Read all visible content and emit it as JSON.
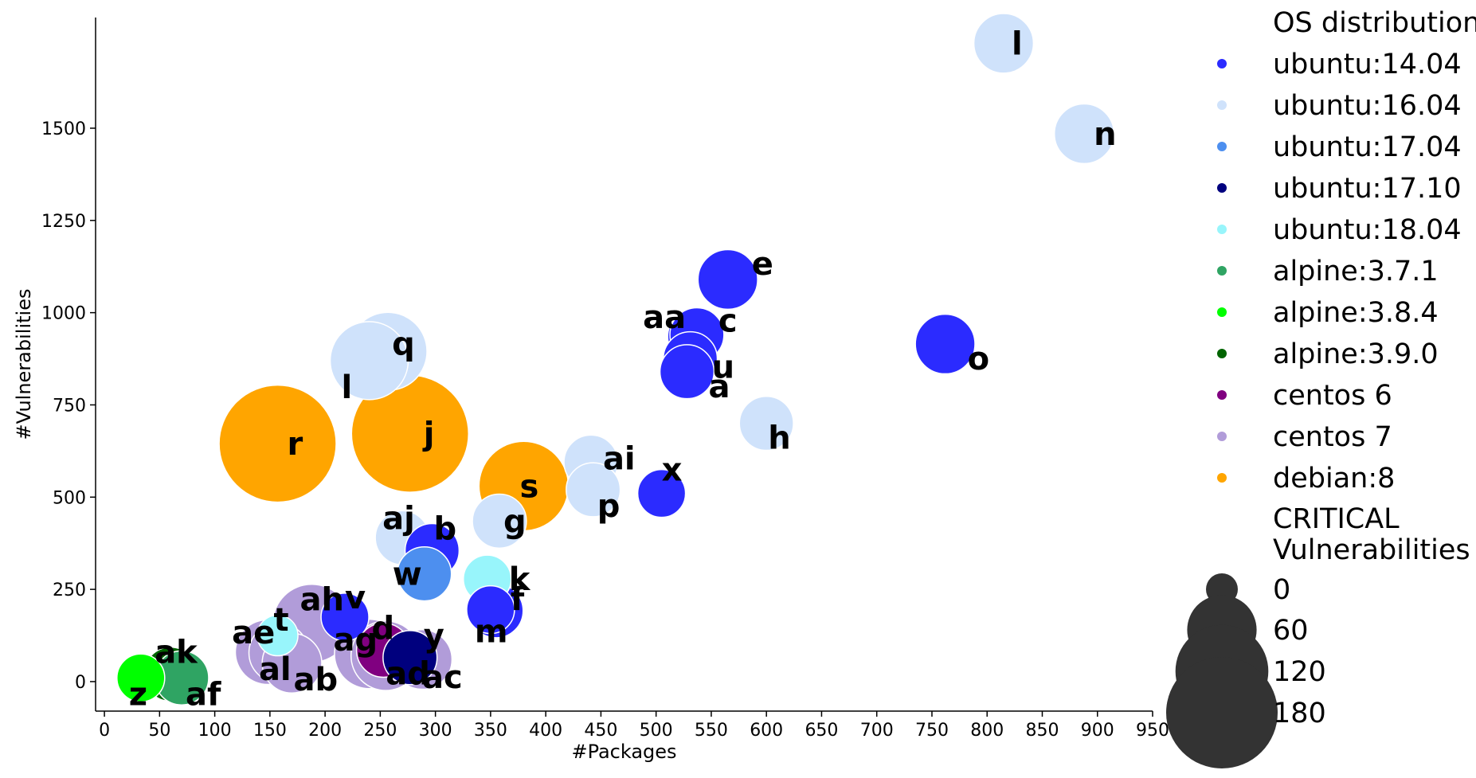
{
  "chart_data": {
    "type": "scatter",
    "xlabel": "#Packages",
    "ylabel": "#Vulnerabilities",
    "xlim": [
      -8,
      950
    ],
    "ylim": [
      -80,
      1800
    ],
    "x_ticks": [
      0,
      50,
      100,
      150,
      200,
      250,
      300,
      350,
      400,
      450,
      500,
      550,
      600,
      650,
      700,
      750,
      800,
      850,
      900,
      950
    ],
    "y_ticks": [
      0,
      250,
      500,
      750,
      1000,
      1250,
      1500
    ],
    "grid": false,
    "legend_position": "right",
    "color_legend_title": "OS distribution",
    "size_legend_title": [
      "CRITICAL",
      "Vulnerabilities"
    ],
    "size_legend_values": [
      0,
      60,
      120,
      180
    ],
    "categories": [
      {
        "name": "ubuntu:14.04",
        "color": "#2b2bff"
      },
      {
        "name": "ubuntu:16.04",
        "color": "#cfe2fb"
      },
      {
        "name": "ubuntu:17.04",
        "color": "#4d8fef"
      },
      {
        "name": "ubuntu:17.10",
        "color": "#00007e"
      },
      {
        "name": "ubuntu:18.04",
        "color": "#98f5fb"
      },
      {
        "name": "alpine:3.7.1",
        "color": "#2fa463"
      },
      {
        "name": "alpine:3.8.4",
        "color": "#00ff00"
      },
      {
        "name": "alpine:3.9.0",
        "color": "#006400"
      },
      {
        "name": "centos 6",
        "color": "#800080"
      },
      {
        "name": "centos 7",
        "color": "#b19cd9"
      },
      {
        "name": "debian:8",
        "color": "#ffa500"
      }
    ],
    "points": [
      {
        "label": "l",
        "os": "ubuntu:16.04",
        "x": 815,
        "y": 1730,
        "critical": 40,
        "lx": 10,
        "ly": 0
      },
      {
        "label": "n",
        "os": "ubuntu:16.04",
        "x": 888,
        "y": 1485,
        "critical": 40,
        "lx": 12,
        "ly": 0
      },
      {
        "label": "e",
        "os": "ubuntu:14.04",
        "x": 565,
        "y": 1090,
        "critical": 40,
        "lx": 30,
        "ly": -20
      },
      {
        "label": "o",
        "os": "ubuntu:14.04",
        "x": 762,
        "y": 915,
        "critical": 40,
        "lx": 28,
        "ly": 18
      },
      {
        "label": "aa",
        "os": "ubuntu:14.04",
        "x": 535,
        "y": 935,
        "critical": 30,
        "lx": -65,
        "ly": -25
      },
      {
        "label": "c",
        "os": "ubuntu:14.04",
        "x": 537,
        "y": 940,
        "critical": 30,
        "lx": 27,
        "ly": -18
      },
      {
        "label": "u",
        "os": "ubuntu:14.04",
        "x": 531,
        "y": 875,
        "critical": 30,
        "lx": 27,
        "ly": 10
      },
      {
        "label": "a",
        "os": "ubuntu:14.04",
        "x": 528,
        "y": 840,
        "critical": 30,
        "lx": 27,
        "ly": 18
      },
      {
        "label": "q",
        "os": "ubuntu:16.04",
        "x": 257,
        "y": 895,
        "critical": 80,
        "lx": 5,
        "ly": -10
      },
      {
        "label": "l",
        "os": "ubuntu:16.04",
        "x": 240,
        "y": 870,
        "critical": 80,
        "lx": -35,
        "ly": 33
      },
      {
        "label": "h",
        "os": "ubuntu:16.04",
        "x": 600,
        "y": 700,
        "critical": 30,
        "lx": 2,
        "ly": 18
      },
      {
        "label": "r",
        "os": "debian:8",
        "x": 157,
        "y": 645,
        "critical": 200,
        "lx": 12,
        "ly": 0
      },
      {
        "label": "j",
        "os": "debian:8",
        "x": 277,
        "y": 672,
        "critical": 200,
        "lx": 17,
        "ly": 0
      },
      {
        "label": "s",
        "os": "debian:8",
        "x": 380,
        "y": 530,
        "critical": 110,
        "lx": -5,
        "ly": 0
      },
      {
        "label": "ai",
        "os": "ubuntu:16.04",
        "x": 441,
        "y": 595,
        "critical": 30,
        "lx": 15,
        "ly": -5
      },
      {
        "label": "p",
        "os": "ubuntu:16.04",
        "x": 443,
        "y": 520,
        "critical": 30,
        "lx": 5,
        "ly": 20
      },
      {
        "label": "x",
        "os": "ubuntu:14.04",
        "x": 505,
        "y": 510,
        "critical": 20,
        "lx": 0,
        "ly": -30
      },
      {
        "label": "g",
        "os": "ubuntu:16.04",
        "x": 358,
        "y": 435,
        "critical": 30,
        "lx": 5,
        "ly": 0
      },
      {
        "label": "aj",
        "os": "ubuntu:16.04",
        "x": 270,
        "y": 390,
        "critical": 30,
        "lx": -25,
        "ly": -25
      },
      {
        "label": "b",
        "os": "ubuntu:14.04",
        "x": 297,
        "y": 355,
        "critical": 30,
        "lx": 2,
        "ly": -28
      },
      {
        "label": "w",
        "os": "ubuntu:17.04",
        "x": 290,
        "y": 292,
        "critical": 30,
        "lx": -40,
        "ly": 0
      },
      {
        "label": "k",
        "os": "ubuntu:18.04",
        "x": 347,
        "y": 278,
        "critical": 20,
        "lx": 27,
        "ly": 0
      },
      {
        "label": "f",
        "os": "ubuntu:14.04",
        "x": 355,
        "y": 192,
        "critical": 30,
        "lx": 18,
        "ly": -15
      },
      {
        "label": "m",
        "os": "ubuntu:14.04",
        "x": 350,
        "y": 195,
        "critical": 20,
        "lx": -20,
        "ly": 27
      },
      {
        "label": "v",
        "os": "ubuntu:14.04",
        "x": 218,
        "y": 175,
        "critical": 20,
        "lx": 0,
        "ly": -25
      },
      {
        "label": "ah",
        "os": "centos 7",
        "x": 188,
        "y": 158,
        "critical": 80,
        "lx": -15,
        "ly": -30
      },
      {
        "label": "t",
        "os": "ubuntu:18.04",
        "x": 157,
        "y": 125,
        "critical": 10,
        "lx": -5,
        "ly": -20
      },
      {
        "label": "ae",
        "os": "centos 7",
        "x": 148,
        "y": 80,
        "critical": 50,
        "lx": -45,
        "ly": -25
      },
      {
        "label": "d",
        "os": "centos 6",
        "x": 253,
        "y": 85,
        "critical": 30,
        "lx": -15,
        "ly": -28
      },
      {
        "label": "ag",
        "os": "centos 7",
        "x": 240,
        "y": 75,
        "critical": 60,
        "lx": -45,
        "ly": -18
      },
      {
        "label": "y",
        "os": "ubuntu:17.10",
        "x": 277,
        "y": 65,
        "critical": 30,
        "lx": 17,
        "ly": -28
      },
      {
        "label": "al",
        "os": "centos 7",
        "x": 158,
        "y": 78,
        "critical": 40,
        "lx": -25,
        "ly": 20
      },
      {
        "label": "ab",
        "os": "centos 7",
        "x": 170,
        "y": 50,
        "critical": 40,
        "lx": 2,
        "ly": 20
      },
      {
        "label": "ad",
        "os": "centos 7",
        "x": 255,
        "y": 70,
        "critical": 60,
        "lx": 0,
        "ly": 22
      },
      {
        "label": "ac",
        "os": "centos 7",
        "x": 288,
        "y": 60,
        "critical": 40,
        "lx": 0,
        "ly": 22
      },
      {
        "label": "ak",
        "os": "alpine:3.9.0",
        "x": 60,
        "y": 20,
        "critical": 30,
        "lx": -20,
        "ly": -28
      },
      {
        "label": "af",
        "os": "alpine:3.7.1",
        "x": 70,
        "y": 10,
        "critical": 30,
        "lx": 5,
        "ly": 20
      },
      {
        "label": "z",
        "os": "alpine:3.8.4",
        "x": 33,
        "y": 10,
        "critical": 20,
        "lx": -15,
        "ly": 20
      }
    ]
  }
}
